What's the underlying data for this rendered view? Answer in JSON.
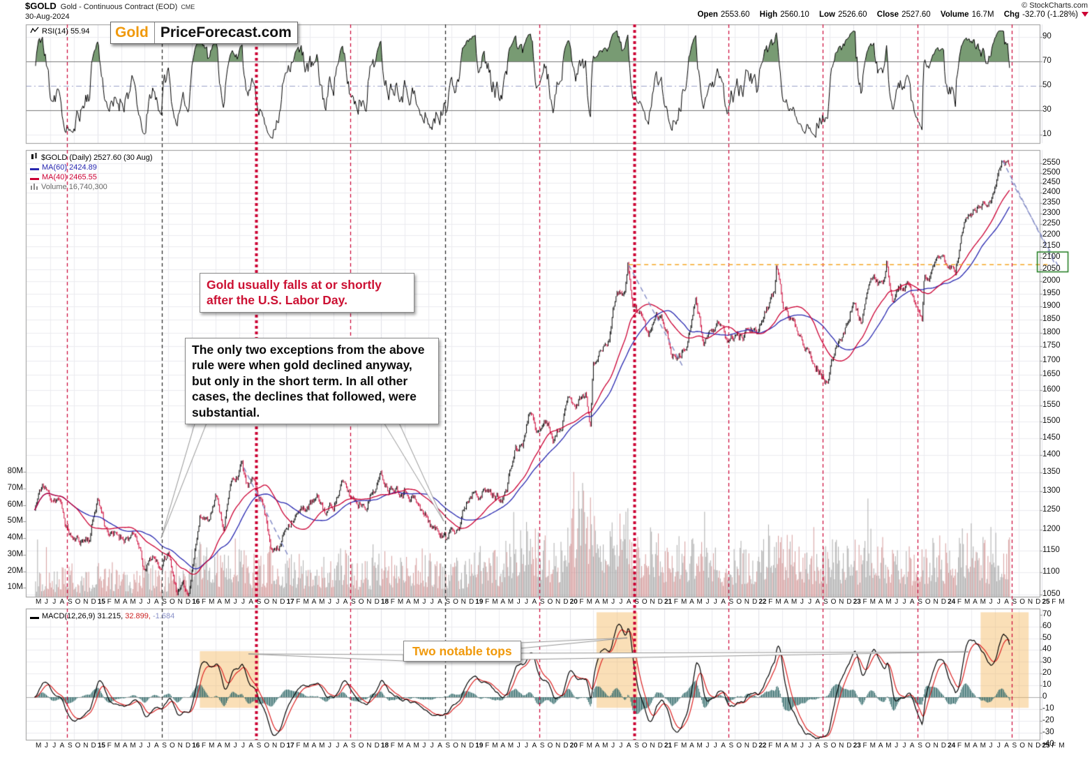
{
  "header": {
    "symbol": "$GOLD",
    "name": "Gold - Continuous Contract (EOD)",
    "exchange": "CME",
    "date": "30-Aug-2024",
    "copyright": "© StockCharts.com",
    "quote": {
      "open_label": "Open",
      "open": "2553.60",
      "high_label": "High",
      "high": "2560.10",
      "low_label": "Low",
      "low": "2526.60",
      "close_label": "Close",
      "close": "2527.60",
      "volume_label": "Volume",
      "volume": "16.7M",
      "chg_label": "Chg",
      "chg": "-32.70 (-1.28%)"
    }
  },
  "logo": {
    "part1": "Gold",
    "part2": "PriceForecast.com"
  },
  "legends": {
    "rsi": "RSI(14) 55.94",
    "price_title": "$GOLD (Daily) 2527.60 (30 Aug)",
    "ma60": "MA(60) 2424.89",
    "ma40": "MA(40) 2465.55",
    "volume": "Volume 16,740,300",
    "macd_main": "MACD(12,26,9) 31.215,",
    "macd_signal": "32.899,",
    "macd_hist": "-1.684"
  },
  "annotations": {
    "labor_day_note": "Gold usually falls at or shortly after the U.S. Labor Day.",
    "exceptions_note": "The only two exceptions from the above rule were when gold declined anyway, but only in the short term. In all other cases, the declines that followed, were substantial.",
    "macd_note": "Two notable tops"
  },
  "axes": {
    "rsi_ticks": [
      90,
      70,
      50,
      30,
      10
    ],
    "price_ticks": [
      2550,
      2500,
      2450,
      2400,
      2350,
      2300,
      2250,
      2200,
      2150,
      2100,
      2050,
      2000,
      1950,
      1900,
      1850,
      1800,
      1750,
      1700,
      1650,
      1600,
      1550,
      1500,
      1450,
      1400,
      1350,
      1300,
      1250,
      1200,
      1150,
      1100,
      1050
    ],
    "volume_ticks": [
      "80M",
      "70M",
      "60M",
      "50M",
      "40M",
      "30M",
      "20M",
      "10M"
    ],
    "macd_ticks": [
      70,
      60,
      50,
      40,
      30,
      20,
      10,
      0,
      -10,
      -20,
      -30,
      -40
    ],
    "months": "M J J A S O N D 15 F M A M J J A S O N D 16 F M A M J J A S O N D 17 F M A M J J A S O N D 18 F M A M J J A S O N D 19 F M A M J J A S O N D 20 F M A M J J A S O N D 21 F M A M J J A S O N D 22 F M A M J J A S O N D 23 F M A M J J A S O N D 24 F M A M J J A S O N D 25 F M"
  },
  "chart_data": {
    "type": "line",
    "subtype": "financial-multi-panel",
    "panels": [
      "RSI(14)",
      "Price + Volume + MA(40)/MA(60)",
      "MACD(12,26,9)"
    ],
    "x_start": "2014-05",
    "x_end": "2025-03",
    "price": {
      "scale": "log",
      "ylim": [
        1050,
        2550
      ],
      "unit": "USD",
      "last": 2527.6,
      "monthly_close": [
        1250,
        1315,
        1282,
        1287,
        1208,
        1173,
        1175,
        1184,
        1283,
        1213,
        1183,
        1184,
        1190,
        1172,
        1095,
        1134,
        1114,
        1141,
        1065,
        1060,
        1116,
        1234,
        1233,
        1290,
        1215,
        1320,
        1357,
        1309,
        1317,
        1273,
        1174,
        1152,
        1211,
        1248,
        1247,
        1266,
        1270,
        1242,
        1268,
        1322,
        1284,
        1271,
        1273,
        1305,
        1340,
        1318,
        1325,
        1315,
        1300,
        1251,
        1224,
        1200,
        1192,
        1215,
        1222,
        1281,
        1321,
        1313,
        1292,
        1284,
        1306,
        1410,
        1428,
        1529,
        1466,
        1513,
        1460,
        1519,
        1587,
        1566,
        1597,
        1694,
        1737,
        1801,
        1976,
        1967,
        1886,
        1878,
        1777,
        1895,
        1848,
        1729,
        1714,
        1768,
        1905,
        1772,
        1814,
        1814,
        1757,
        1784,
        1775,
        1829,
        1797,
        1909,
        1937,
        1912,
        1848,
        1807,
        1766,
        1716,
        1672,
        1641,
        1760,
        1826,
        1928,
        1837,
        1986,
        1991,
        1982,
        1929,
        1971,
        1966,
        1866,
        1994,
        2038,
        2072,
        2053,
        2044,
        2230,
        2303,
        2327,
        2339,
        2448,
        2527
      ],
      "extra_points": [
        [
          19.6,
          1048
        ],
        [
          26.3,
          1375
        ],
        [
          52.4,
          1170
        ],
        [
          70.6,
          1478
        ],
        [
          75.4,
          2072
        ],
        [
          94.3,
          2058
        ],
        [
          100.8,
          1622
        ],
        [
          108.3,
          2060
        ],
        [
          112.8,
          1832
        ],
        [
          115.3,
          2088
        ],
        [
          123.4,
          2555
        ],
        [
          123.9,
          2528
        ]
      ]
    },
    "volume": {
      "ylim_millions": [
        0,
        80
      ],
      "last_shares": 16740300,
      "monthly_millions": [
        14,
        13,
        12,
        13,
        15,
        14,
        12,
        11,
        14,
        13,
        12,
        11,
        12,
        13,
        16,
        14,
        13,
        12,
        15,
        12,
        18,
        22,
        20,
        18,
        17,
        24,
        22,
        18,
        17,
        16,
        22,
        16,
        18,
        16,
        15,
        16,
        17,
        18,
        16,
        19,
        18,
        16,
        15,
        16,
        20,
        18,
        16,
        17,
        18,
        19,
        18,
        16,
        15,
        18,
        16,
        17,
        20,
        22,
        20,
        19,
        22,
        32,
        28,
        30,
        26,
        24,
        22,
        22,
        28,
        38,
        45,
        40,
        32,
        30,
        34,
        36,
        28,
        26,
        28,
        26,
        24,
        22,
        24,
        22,
        24,
        22,
        20,
        18,
        20,
        20,
        22,
        18,
        22,
        26,
        30,
        26,
        24,
        22,
        20,
        20,
        22,
        22,
        24,
        20,
        22,
        20,
        26,
        24,
        24,
        20,
        20,
        20,
        20,
        22,
        22,
        24,
        22,
        20,
        26,
        30,
        26,
        22,
        24,
        26
      ]
    },
    "rsi": {
      "period": 14,
      "last": 55.94,
      "overbought": 70,
      "midline": 50,
      "oversold": 30,
      "ylim": [
        10,
        90
      ]
    },
    "macd": {
      "fast": 12,
      "slow": 26,
      "signal": 9,
      "last_macd": 31.215,
      "last_signal": 32.899,
      "last_hist": -1.684,
      "ylim": [
        -40,
        70
      ]
    },
    "ma": [
      {
        "label": "MA(60)",
        "window": 60,
        "color": "#2727b0",
        "last": 2424.89
      },
      {
        "label": "MA(40)",
        "window": 40,
        "color": "#cc0033",
        "last": 2465.55
      }
    ],
    "labor_day_markers": [
      {
        "t": 4,
        "year": 2014,
        "style": "red-dashed"
      },
      {
        "t": 16,
        "year": 2015,
        "style": "black-dashed"
      },
      {
        "t": 28,
        "year": 2016,
        "style": "red-dotted-thick"
      },
      {
        "t": 40,
        "year": 2017,
        "style": "red-dashed"
      },
      {
        "t": 52,
        "year": 2018,
        "style": "black-dashed"
      },
      {
        "t": 64,
        "year": 2019,
        "style": "red-dashed"
      },
      {
        "t": 76,
        "year": 2020,
        "style": "red-dotted-thick"
      },
      {
        "t": 88,
        "year": 2021,
        "style": "red-dashed"
      },
      {
        "t": 100,
        "year": 2022,
        "style": "red-dashed"
      },
      {
        "t": 112,
        "year": 2023,
        "style": "red-dashed"
      },
      {
        "t": 124,
        "year": 2024,
        "style": "red-dashed"
      }
    ],
    "highlight_boxes": [
      {
        "t0": 21.0,
        "t1": 28.5,
        "top": 39,
        "bottom": -9
      },
      {
        "t0": 71.4,
        "t1": 76.6,
        "top": 72,
        "bottom": -9
      },
      {
        "t0": 120.2,
        "t1": 126.3,
        "top": 72,
        "bottom": -9
      }
    ],
    "trendlines": [
      {
        "t": [
          26.6,
          32.3
        ],
        "price": [
          1364,
          1135
        ]
      },
      {
        "t": [
          75.5,
          82.5
        ],
        "price": [
          2069,
          1672
        ]
      },
      {
        "t": [
          123.0,
          129.7
        ],
        "price": [
          2564,
          2069
        ]
      },
      {
        "t": [
          124.1,
          130.3
        ],
        "price": [
          2459,
          2050
        ]
      }
    ],
    "resistance_line": {
      "price": 2070,
      "t0": 75.5,
      "t1": 128.8
    },
    "target_box": {
      "price_low": 2040,
      "price_high": 2125,
      "t0": 127.4,
      "t1": 131.3
    },
    "colors": {
      "bar_up": "#000000",
      "bar_down": "#cc0033",
      "ma_fast": "#cc0033",
      "ma_slow": "#2727b0",
      "volume_up": "#9b9b9b",
      "volume_down": "#cf8f8f",
      "macd_line": "#000000",
      "macd_signal": "#dd2222",
      "macd_hist": "#336b6b",
      "rsi_line": "#000000",
      "rsi_fill": "#789b73",
      "marker_red": "#cc0033",
      "marker_black": "#222222",
      "highlight": "#f5b95f",
      "trend": "#8890c8",
      "resistance": "#f5a623",
      "target_border": "#1a7a1a",
      "grid": "#ebebf0",
      "panel_border": "#999999",
      "accent_orange": "#f0990b",
      "note_red": "#cc1133"
    }
  }
}
